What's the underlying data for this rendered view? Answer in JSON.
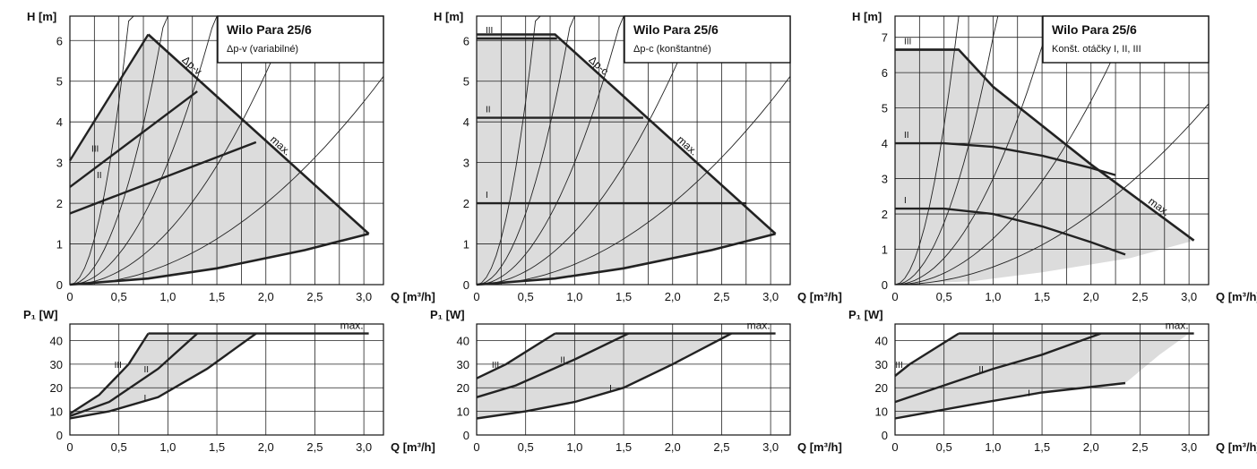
{
  "charts": [
    {
      "title": "Wilo Para 25/6",
      "subtitle": "Δp-v (variabilné)",
      "curve_label": "Δp-v",
      "max_label": "max.",
      "h_chart": {
        "ylabel": "H [m]",
        "xlabel": "Q [m³/h]",
        "xlim": [
          0,
          3.2
        ],
        "ylim": [
          0,
          6.6
        ],
        "xticks": [
          "0",
          "0,5",
          "1,0",
          "1,5",
          "2,0",
          "2,5",
          "3,0"
        ],
        "yticks": [
          "0",
          "1",
          "2",
          "3",
          "4",
          "5",
          "6"
        ],
        "region": [
          [
            0,
            3.05
          ],
          [
            0.8,
            6.15
          ],
          [
            3.05,
            1.25
          ],
          [
            2.4,
            0.85
          ],
          [
            1.5,
            0.4
          ],
          [
            0.8,
            0.15
          ],
          [
            0,
            0
          ]
        ],
        "max_curve": [
          [
            0.8,
            6.15
          ],
          [
            3.05,
            1.25
          ]
        ],
        "system_curve": [
          [
            0,
            0
          ],
          [
            0.8,
            0.15
          ],
          [
            1.5,
            0.4
          ],
          [
            2.4,
            0.85
          ],
          [
            3.05,
            1.25
          ]
        ],
        "speed_curves": [
          {
            "name": "III",
            "points": [
              [
                0,
                3.05
              ],
              [
                0.8,
                6.15
              ]
            ]
          },
          {
            "name": "II",
            "points": [
              [
                0,
                2.4
              ],
              [
                1.3,
                4.75
              ]
            ]
          },
          {
            "name": "I",
            "points": [
              [
                0,
                1.75
              ],
              [
                1.9,
                3.5
              ]
            ]
          }
        ]
      },
      "p_chart": {
        "ylabel": "P₁ [W]",
        "xlabel": "Q [m³/h]",
        "xlim": [
          0,
          3.2
        ],
        "ylim": [
          0,
          47
        ],
        "xticks": [
          "0",
          "0,5",
          "1,0",
          "1,5",
          "2,0",
          "2,5",
          "3,0"
        ],
        "yticks": [
          "0",
          "10",
          "20",
          "30",
          "40"
        ],
        "region": [
          [
            0,
            9
          ],
          [
            0.3,
            17
          ],
          [
            0.6,
            30
          ],
          [
            0.8,
            43
          ],
          [
            1.9,
            43
          ],
          [
            1.4,
            28
          ],
          [
            0.9,
            16
          ],
          [
            0.4,
            10
          ],
          [
            0,
            7
          ]
        ],
        "speed_curves": [
          {
            "name": "max.",
            "points": [
              [
                0.8,
                43
              ],
              [
                3.05,
                43
              ]
            ]
          },
          {
            "name": "III",
            "points": [
              [
                0,
                9
              ],
              [
                0.3,
                17
              ],
              [
                0.6,
                30
              ],
              [
                0.8,
                43
              ]
            ]
          },
          {
            "name": "II",
            "points": [
              [
                0,
                8
              ],
              [
                0.4,
                14
              ],
              [
                0.9,
                28
              ],
              [
                1.3,
                43
              ]
            ]
          },
          {
            "name": "I",
            "points": [
              [
                0,
                7
              ],
              [
                0.4,
                10
              ],
              [
                0.9,
                16
              ],
              [
                1.4,
                28
              ],
              [
                1.9,
                43
              ]
            ]
          }
        ]
      }
    },
    {
      "title": "Wilo Para 25/6",
      "subtitle": "Δp-c (konštantné)",
      "curve_label": "Δp-c",
      "max_label": "max.",
      "h_chart": {
        "ylabel": "H [m]",
        "xlabel": "Q [m³/h]",
        "xlim": [
          0,
          3.2
        ],
        "ylim": [
          0,
          6.6
        ],
        "xticks": [
          "0",
          "0,5",
          "1,0",
          "1,5",
          "2,0",
          "2,5",
          "3,0"
        ],
        "yticks": [
          "0",
          "1",
          "2",
          "3",
          "4",
          "5",
          "6"
        ],
        "region": [
          [
            0,
            6.15
          ],
          [
            0.8,
            6.15
          ],
          [
            3.05,
            1.25
          ],
          [
            2.4,
            0.85
          ],
          [
            1.5,
            0.4
          ],
          [
            0.8,
            0.15
          ],
          [
            0,
            0
          ]
        ],
        "max_curve": [
          [
            0,
            6.15
          ],
          [
            0.8,
            6.15
          ],
          [
            3.05,
            1.25
          ]
        ],
        "system_curve": [
          [
            0,
            0
          ],
          [
            0.8,
            0.15
          ],
          [
            1.5,
            0.4
          ],
          [
            2.4,
            0.85
          ],
          [
            3.05,
            1.25
          ]
        ],
        "speed_curves": [
          {
            "name": "III",
            "points": [
              [
                0,
                6.05
              ],
              [
                0.82,
                6.05
              ]
            ]
          },
          {
            "name": "II",
            "points": [
              [
                0,
                4.1
              ],
              [
                1.7,
                4.1
              ]
            ]
          },
          {
            "name": "I",
            "points": [
              [
                0,
                2.0
              ],
              [
                2.75,
                2.0
              ]
            ]
          }
        ]
      },
      "p_chart": {
        "ylabel": "P₁ [W]",
        "xlabel": "Q [m³/h]",
        "xlim": [
          0,
          3.2
        ],
        "ylim": [
          0,
          47
        ],
        "xticks": [
          "0",
          "0,5",
          "1,0",
          "1,5",
          "2,0",
          "2,5",
          "3,0"
        ],
        "yticks": [
          "0",
          "10",
          "20",
          "30",
          "40"
        ],
        "region": [
          [
            0,
            24
          ],
          [
            0.3,
            30
          ],
          [
            0.8,
            43
          ],
          [
            2.6,
            43
          ],
          [
            2.0,
            30
          ],
          [
            1.5,
            20
          ],
          [
            1.0,
            14
          ],
          [
            0.5,
            10
          ],
          [
            0,
            7
          ]
        ],
        "speed_curves": [
          {
            "name": "max.",
            "points": [
              [
                0.8,
                43
              ],
              [
                3.05,
                43
              ]
            ]
          },
          {
            "name": "III",
            "points": [
              [
                0,
                24
              ],
              [
                0.3,
                30
              ],
              [
                0.8,
                43
              ]
            ]
          },
          {
            "name": "II",
            "points": [
              [
                0,
                16
              ],
              [
                0.4,
                21
              ],
              [
                1.0,
                32
              ],
              [
                1.55,
                43
              ]
            ]
          },
          {
            "name": "I",
            "points": [
              [
                0,
                7
              ],
              [
                0.5,
                10
              ],
              [
                1.0,
                14
              ],
              [
                1.5,
                20
              ],
              [
                2.0,
                30
              ],
              [
                2.6,
                43
              ]
            ]
          }
        ]
      }
    },
    {
      "title": "Wilo Para 25/6",
      "subtitle": "Konšt. otáčky I, II, III",
      "curve_label": "",
      "max_label": "max.",
      "h_chart": {
        "ylabel": "H [m]",
        "xlabel": "Q [m³/h]",
        "xlim": [
          0,
          3.2
        ],
        "ylim": [
          0,
          7.6
        ],
        "xticks": [
          "0",
          "0,5",
          "1,0",
          "1,5",
          "2,0",
          "2,5",
          "3,0"
        ],
        "yticks": [
          "0",
          "1",
          "2",
          "3",
          "4",
          "5",
          "6",
          "7"
        ],
        "region": [
          [
            0,
            6.65
          ],
          [
            0.65,
            6.65
          ],
          [
            1.0,
            5.6
          ],
          [
            2.0,
            3.4
          ],
          [
            3.05,
            1.25
          ],
          [
            2.4,
            0.75
          ],
          [
            1.5,
            0.35
          ],
          [
            0.8,
            0.1
          ],
          [
            0,
            0
          ]
        ],
        "max_curve": [
          [
            0,
            6.65
          ],
          [
            0.65,
            6.65
          ],
          [
            1.0,
            5.6
          ],
          [
            2.0,
            3.4
          ],
          [
            3.05,
            1.25
          ]
        ],
        "system_curve": [],
        "speed_curves": [
          {
            "name": "III",
            "points": [
              [
                0,
                6.65
              ],
              [
                0.65,
                6.65
              ]
            ]
          },
          {
            "name": "II",
            "points": [
              [
                0,
                4.0
              ],
              [
                0.5,
                4.0
              ],
              [
                1.0,
                3.9
              ],
              [
                1.5,
                3.65
              ],
              [
                2.0,
                3.3
              ],
              [
                2.25,
                3.1
              ]
            ]
          },
          {
            "name": "I",
            "points": [
              [
                0,
                2.15
              ],
              [
                0.5,
                2.15
              ],
              [
                1.0,
                2.0
              ],
              [
                1.5,
                1.65
              ],
              [
                2.0,
                1.2
              ],
              [
                2.35,
                0.85
              ]
            ]
          }
        ]
      },
      "p_chart": {
        "ylabel": "P₁ [W]",
        "xlabel": "Q [m³/h]",
        "xlim": [
          0,
          3.2
        ],
        "ylim": [
          0,
          47
        ],
        "xticks": [
          "0",
          "0,5",
          "1,0",
          "1,5",
          "2,0",
          "2,5",
          "3,0"
        ],
        "yticks": [
          "0",
          "10",
          "20",
          "30",
          "40"
        ],
        "region": [
          [
            0,
            25
          ],
          [
            0.15,
            30
          ],
          [
            0.65,
            43
          ],
          [
            3.0,
            43
          ],
          [
            2.7,
            34
          ],
          [
            2.35,
            22
          ],
          [
            1.5,
            18
          ],
          [
            0.8,
            13
          ],
          [
            0,
            7
          ]
        ],
        "speed_curves": [
          {
            "name": "max.",
            "points": [
              [
                0.65,
                43
              ],
              [
                3.05,
                43
              ]
            ]
          },
          {
            "name": "III",
            "points": [
              [
                0,
                25
              ],
              [
                0.15,
                30
              ],
              [
                0.65,
                43
              ]
            ]
          },
          {
            "name": "II",
            "points": [
              [
                0,
                14
              ],
              [
                0.5,
                21
              ],
              [
                1.0,
                28
              ],
              [
                1.5,
                34
              ],
              [
                2.1,
                43
              ]
            ]
          },
          {
            "name": "I",
            "points": [
              [
                0,
                7
              ],
              [
                0.8,
                13
              ],
              [
                1.5,
                18
              ],
              [
                2.35,
                22
              ]
            ]
          }
        ]
      }
    }
  ]
}
